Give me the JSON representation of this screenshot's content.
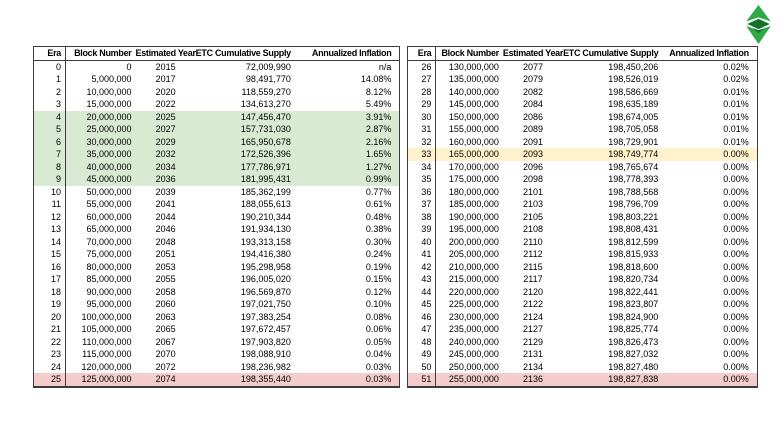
{
  "logo": {
    "name": "Ethereum Classic",
    "color_light": "#2fa846",
    "color_dark": "#156f2d"
  },
  "table": {
    "columns": [
      "Era",
      "Block Number",
      "Estimated Year",
      "ETC Cumulative Supply",
      "Annualized Inflation"
    ],
    "highlight_colors": {
      "green": "#d9ead3",
      "yellow": "#fff2cc",
      "red": "#f4cccc"
    }
  },
  "left_table": {
    "rows": [
      {
        "era": "0",
        "block": "0",
        "year": "2015",
        "supply": "72,009,990",
        "inflation": "n/a",
        "highlight": ""
      },
      {
        "era": "1",
        "block": "5,000,000",
        "year": "2017",
        "supply": "98,491,770",
        "inflation": "14.08%",
        "highlight": ""
      },
      {
        "era": "2",
        "block": "10,000,000",
        "year": "2020",
        "supply": "118,559,270",
        "inflation": "8.12%",
        "highlight": ""
      },
      {
        "era": "3",
        "block": "15,000,000",
        "year": "2022",
        "supply": "134,613,270",
        "inflation": "5.49%",
        "highlight": ""
      },
      {
        "era": "4",
        "block": "20,000,000",
        "year": "2025",
        "supply": "147,456,470",
        "inflation": "3.91%",
        "highlight": "green"
      },
      {
        "era": "5",
        "block": "25,000,000",
        "year": "2027",
        "supply": "157,731,030",
        "inflation": "2.87%",
        "highlight": "green"
      },
      {
        "era": "6",
        "block": "30,000,000",
        "year": "2029",
        "supply": "165,950,678",
        "inflation": "2.16%",
        "highlight": "green"
      },
      {
        "era": "7",
        "block": "35,000,000",
        "year": "2032",
        "supply": "172,526,396",
        "inflation": "1.65%",
        "highlight": "green"
      },
      {
        "era": "8",
        "block": "40,000,000",
        "year": "2034",
        "supply": "177,786,971",
        "inflation": "1.27%",
        "highlight": "green"
      },
      {
        "era": "9",
        "block": "45,000,000",
        "year": "2036",
        "supply": "181,995,431",
        "inflation": "0.99%",
        "highlight": "green"
      },
      {
        "era": "10",
        "block": "50,000,000",
        "year": "2039",
        "supply": "185,362,199",
        "inflation": "0.77%",
        "highlight": ""
      },
      {
        "era": "11",
        "block": "55,000,000",
        "year": "2041",
        "supply": "188,055,613",
        "inflation": "0.61%",
        "highlight": ""
      },
      {
        "era": "12",
        "block": "60,000,000",
        "year": "2044",
        "supply": "190,210,344",
        "inflation": "0.48%",
        "highlight": ""
      },
      {
        "era": "13",
        "block": "65,000,000",
        "year": "2046",
        "supply": "191,934,130",
        "inflation": "0.38%",
        "highlight": ""
      },
      {
        "era": "14",
        "block": "70,000,000",
        "year": "2048",
        "supply": "193,313,158",
        "inflation": "0.30%",
        "highlight": ""
      },
      {
        "era": "15",
        "block": "75,000,000",
        "year": "2051",
        "supply": "194,416,380",
        "inflation": "0.24%",
        "highlight": ""
      },
      {
        "era": "16",
        "block": "80,000,000",
        "year": "2053",
        "supply": "195,298,958",
        "inflation": "0.19%",
        "highlight": ""
      },
      {
        "era": "17",
        "block": "85,000,000",
        "year": "2055",
        "supply": "196,005,020",
        "inflation": "0.15%",
        "highlight": ""
      },
      {
        "era": "18",
        "block": "90,000,000",
        "year": "2058",
        "supply": "196,569,870",
        "inflation": "0.12%",
        "highlight": ""
      },
      {
        "era": "19",
        "block": "95,000,000",
        "year": "2060",
        "supply": "197,021,750",
        "inflation": "0.10%",
        "highlight": ""
      },
      {
        "era": "20",
        "block": "100,000,000",
        "year": "2063",
        "supply": "197,383,254",
        "inflation": "0.08%",
        "highlight": ""
      },
      {
        "era": "21",
        "block": "105,000,000",
        "year": "2065",
        "supply": "197,672,457",
        "inflation": "0.06%",
        "highlight": ""
      },
      {
        "era": "22",
        "block": "110,000,000",
        "year": "2067",
        "supply": "197,903,820",
        "inflation": "0.05%",
        "highlight": ""
      },
      {
        "era": "23",
        "block": "115,000,000",
        "year": "2070",
        "supply": "198,088,910",
        "inflation": "0.04%",
        "highlight": ""
      },
      {
        "era": "24",
        "block": "120,000,000",
        "year": "2072",
        "supply": "198,236,982",
        "inflation": "0.03%",
        "highlight": ""
      },
      {
        "era": "25",
        "block": "125,000,000",
        "year": "2074",
        "supply": "198,355,440",
        "inflation": "0.03%",
        "highlight": "red"
      }
    ]
  },
  "right_table": {
    "rows": [
      {
        "era": "26",
        "block": "130,000,000",
        "year": "2077",
        "supply": "198,450,206",
        "inflation": "0.02%",
        "highlight": ""
      },
      {
        "era": "27",
        "block": "135,000,000",
        "year": "2079",
        "supply": "198,526,019",
        "inflation": "0.02%",
        "highlight": ""
      },
      {
        "era": "28",
        "block": "140,000,000",
        "year": "2082",
        "supply": "198,586,669",
        "inflation": "0.01%",
        "highlight": ""
      },
      {
        "era": "29",
        "block": "145,000,000",
        "year": "2084",
        "supply": "198,635,189",
        "inflation": "0.01%",
        "highlight": ""
      },
      {
        "era": "30",
        "block": "150,000,000",
        "year": "2086",
        "supply": "198,674,005",
        "inflation": "0.01%",
        "highlight": ""
      },
      {
        "era": "31",
        "block": "155,000,000",
        "year": "2089",
        "supply": "198,705,058",
        "inflation": "0.01%",
        "highlight": ""
      },
      {
        "era": "32",
        "block": "160,000,000",
        "year": "2091",
        "supply": "198,729,901",
        "inflation": "0.01%",
        "highlight": ""
      },
      {
        "era": "33",
        "block": "165,000,000",
        "year": "2093",
        "supply": "198,749,774",
        "inflation": "0.00%",
        "highlight": "yellow"
      },
      {
        "era": "34",
        "block": "170,000,000",
        "year": "2096",
        "supply": "198,765,674",
        "inflation": "0.00%",
        "highlight": ""
      },
      {
        "era": "35",
        "block": "175,000,000",
        "year": "2098",
        "supply": "198,778,393",
        "inflation": "0.00%",
        "highlight": ""
      },
      {
        "era": "36",
        "block": "180,000,000",
        "year": "2101",
        "supply": "198,788,568",
        "inflation": "0.00%",
        "highlight": ""
      },
      {
        "era": "37",
        "block": "185,000,000",
        "year": "2103",
        "supply": "198,796,709",
        "inflation": "0.00%",
        "highlight": ""
      },
      {
        "era": "38",
        "block": "190,000,000",
        "year": "2105",
        "supply": "198,803,221",
        "inflation": "0.00%",
        "highlight": ""
      },
      {
        "era": "39",
        "block": "195,000,000",
        "year": "2108",
        "supply": "198,808,431",
        "inflation": "0.00%",
        "highlight": ""
      },
      {
        "era": "40",
        "block": "200,000,000",
        "year": "2110",
        "supply": "198,812,599",
        "inflation": "0.00%",
        "highlight": ""
      },
      {
        "era": "41",
        "block": "205,000,000",
        "year": "2112",
        "supply": "198,815,933",
        "inflation": "0.00%",
        "highlight": ""
      },
      {
        "era": "42",
        "block": "210,000,000",
        "year": "2115",
        "supply": "198,818,600",
        "inflation": "0.00%",
        "highlight": ""
      },
      {
        "era": "43",
        "block": "215,000,000",
        "year": "2117",
        "supply": "198,820,734",
        "inflation": "0.00%",
        "highlight": ""
      },
      {
        "era": "44",
        "block": "220,000,000",
        "year": "2120",
        "supply": "198,822,441",
        "inflation": "0.00%",
        "highlight": ""
      },
      {
        "era": "45",
        "block": "225,000,000",
        "year": "2122",
        "supply": "198,823,807",
        "inflation": "0.00%",
        "highlight": ""
      },
      {
        "era": "46",
        "block": "230,000,000",
        "year": "2124",
        "supply": "198,824,900",
        "inflation": "0.00%",
        "highlight": ""
      },
      {
        "era": "47",
        "block": "235,000,000",
        "year": "2127",
        "supply": "198,825,774",
        "inflation": "0.00%",
        "highlight": ""
      },
      {
        "era": "48",
        "block": "240,000,000",
        "year": "2129",
        "supply": "198,826,473",
        "inflation": "0.00%",
        "highlight": ""
      },
      {
        "era": "49",
        "block": "245,000,000",
        "year": "2131",
        "supply": "198,827,032",
        "inflation": "0.00%",
        "highlight": ""
      },
      {
        "era": "50",
        "block": "250,000,000",
        "year": "2134",
        "supply": "198,827,480",
        "inflation": "0.00%",
        "highlight": ""
      },
      {
        "era": "51",
        "block": "255,000,000",
        "year": "2136",
        "supply": "198,827,838",
        "inflation": "0.00%",
        "highlight": "red"
      }
    ]
  }
}
